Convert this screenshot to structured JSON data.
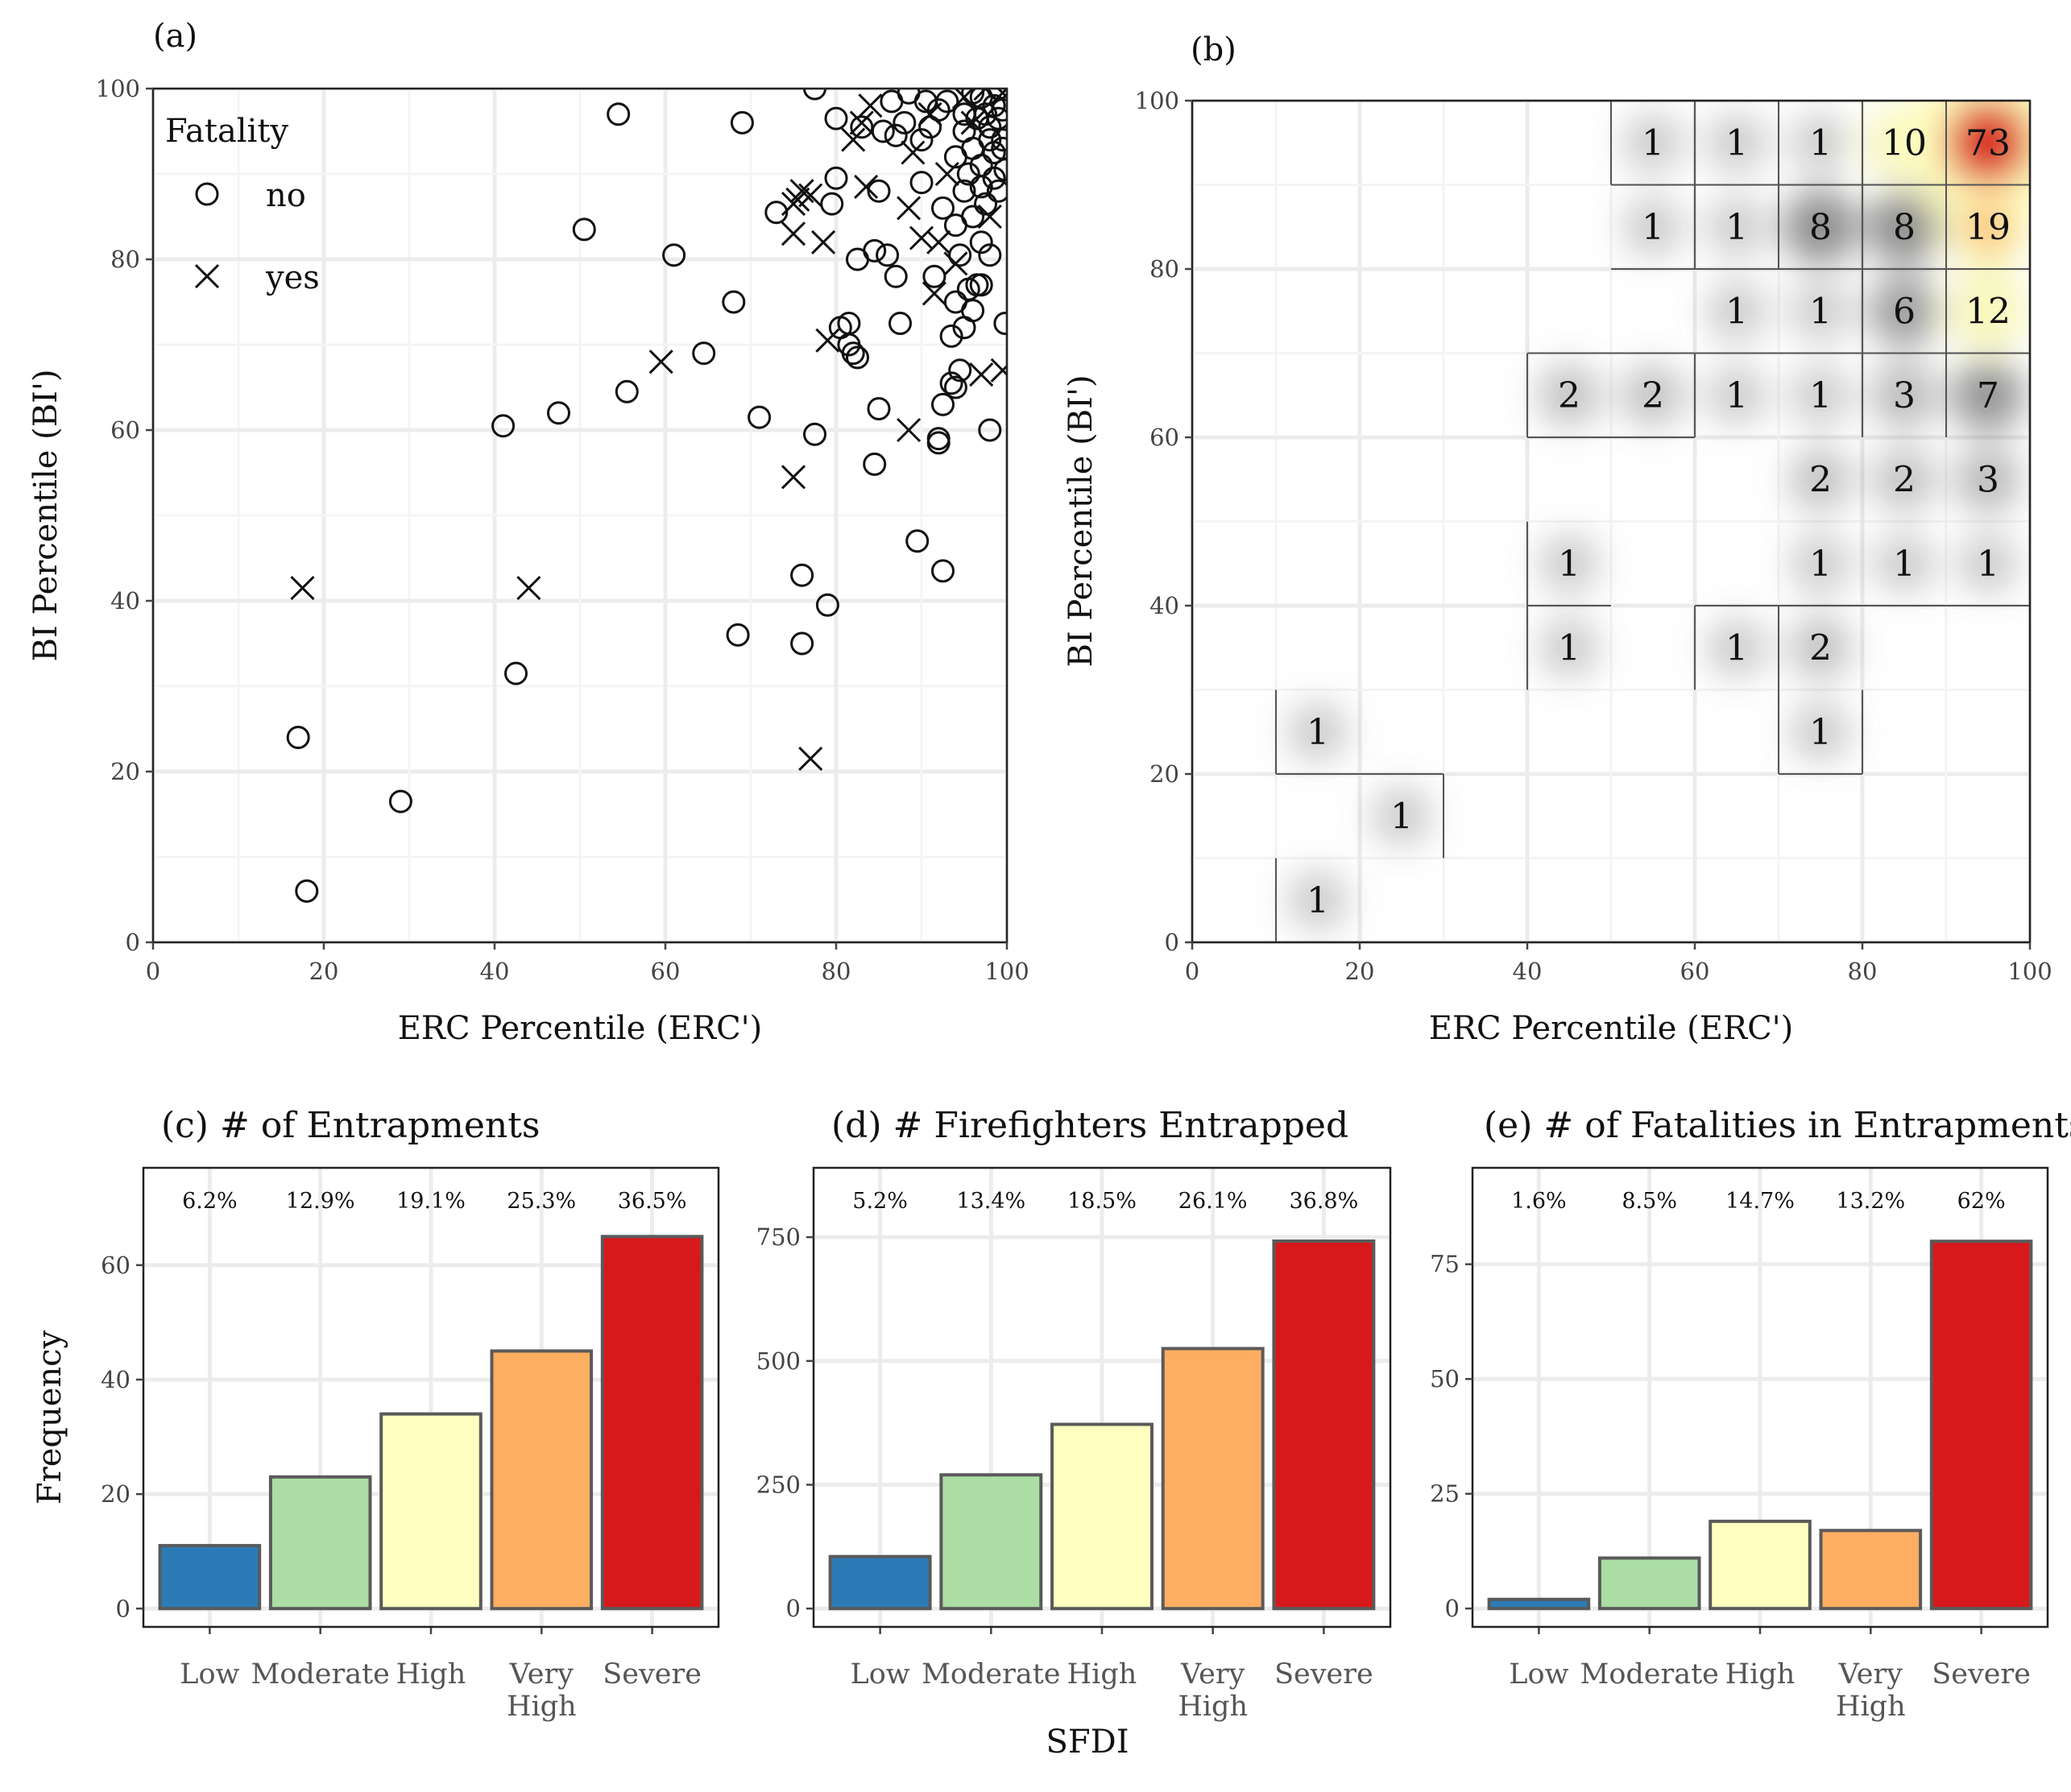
{
  "colors": {
    "low": "#2c7bb6",
    "moderate": "#abdda4",
    "high": "#ffffbf",
    "very_high": "#fdae61",
    "severe": "#d7191c",
    "bar_edge": "#5a5a5a"
  },
  "shared": {
    "sfdi_label": "SFDI",
    "frequency_label": "Frequency"
  },
  "chart_data": [
    {
      "panel": "(a)",
      "type": "scatter",
      "title": "",
      "xlabel": "ERC Percentile (ERC')",
      "ylabel": "BI Percentile (BI')",
      "xlim": [
        0,
        100
      ],
      "ylim": [
        0,
        100
      ],
      "xticks": [
        "0",
        "20",
        "40",
        "60",
        "80",
        "100"
      ],
      "yticks": [
        "0",
        "20",
        "40",
        "60",
        "80",
        "100"
      ],
      "legend": {
        "title": "Fatality",
        "entries": [
          "no",
          "yes"
        ],
        "placement": "top-left"
      },
      "series": [
        {
          "name": "no",
          "marker": "circle",
          "points": [
            [
              17,
              24
            ],
            [
              18,
              6
            ],
            [
              29,
              16.5
            ],
            [
              41,
              60.5
            ],
            [
              42.5,
              31.5
            ],
            [
              47.5,
              62
            ],
            [
              50.5,
              83.5
            ],
            [
              54.5,
              97
            ],
            [
              55.5,
              64.5
            ],
            [
              61,
              80.5
            ],
            [
              64.5,
              69
            ],
            [
              68,
              75
            ],
            [
              68.5,
              36
            ],
            [
              69,
              96
            ],
            [
              71,
              61.5
            ],
            [
              73,
              85.5
            ],
            [
              76,
              43
            ],
            [
              76,
              35
            ],
            [
              77.5,
              59.5
            ],
            [
              77.5,
              100
            ],
            [
              79,
              39.5
            ],
            [
              79.5,
              86.5
            ],
            [
              80,
              96.5
            ],
            [
              80,
              89.5
            ],
            [
              80.5,
              72
            ],
            [
              81.5,
              70
            ],
            [
              81.5,
              72.5
            ],
            [
              82,
              69
            ],
            [
              82.5,
              68.5
            ],
            [
              82.5,
              80
            ],
            [
              83,
              95.5
            ],
            [
              84.5,
              56
            ],
            [
              84.5,
              81
            ],
            [
              85,
              88
            ],
            [
              85,
              62.5
            ],
            [
              85.5,
              95
            ],
            [
              86,
              80.5
            ],
            [
              86.5,
              98.5
            ],
            [
              87,
              94.5
            ],
            [
              87,
              78
            ],
            [
              87.5,
              72.5
            ],
            [
              88,
              96
            ],
            [
              88.5,
              99.5
            ],
            [
              89.5,
              47
            ],
            [
              90,
              89
            ],
            [
              90,
              94
            ],
            [
              90.5,
              98.5
            ],
            [
              91,
              95.5
            ],
            [
              91.5,
              78
            ],
            [
              92,
              59
            ],
            [
              92,
              58.5
            ],
            [
              92,
              97.5
            ],
            [
              92.5,
              43.5
            ],
            [
              92.5,
              63
            ],
            [
              92.5,
              86
            ],
            [
              93,
              98.5
            ],
            [
              93.5,
              71
            ],
            [
              93.5,
              65.5
            ],
            [
              94,
              75
            ],
            [
              94,
              65
            ],
            [
              94,
              84
            ],
            [
              94,
              92
            ],
            [
              94.5,
              67
            ],
            [
              94.5,
              80.5
            ],
            [
              95,
              72
            ],
            [
              95,
              97
            ],
            [
              95,
              88
            ],
            [
              95,
              95
            ],
            [
              95.5,
              76.5
            ],
            [
              95.5,
              90
            ],
            [
              96,
              99.5
            ],
            [
              96,
              74
            ],
            [
              96,
              85
            ],
            [
              96,
              93
            ],
            [
              96.5,
              77
            ],
            [
              96.5,
              96.5
            ],
            [
              97,
              82
            ],
            [
              97,
              88.5
            ],
            [
              97,
              91
            ],
            [
              97,
              77
            ],
            [
              97,
              99
            ],
            [
              97.5,
              97
            ],
            [
              97.5,
              86.5
            ],
            [
              98,
              95.5
            ],
            [
              98,
              60
            ],
            [
              98,
              80.5
            ],
            [
              98,
              94
            ],
            [
              98.5,
              98
            ],
            [
              98.5,
              89.5
            ],
            [
              98.5,
              92.5
            ],
            [
              99,
              96.5
            ],
            [
              99,
              88
            ],
            [
              99,
              100
            ],
            [
              99.5,
              97.5
            ],
            [
              99.5,
              94
            ],
            [
              99.5,
              93
            ],
            [
              99.8,
              72.5
            ],
            [
              99.8,
              90.5
            ]
          ]
        },
        {
          "name": "yes",
          "marker": "x",
          "points": [
            [
              17.5,
              41.5
            ],
            [
              44,
              41.5
            ],
            [
              59.5,
              68
            ],
            [
              75,
              54.5
            ],
            [
              75,
              83
            ],
            [
              75,
              86.5
            ],
            [
              75.5,
              87
            ],
            [
              76,
              88
            ],
            [
              77,
              87.5
            ],
            [
              77,
              21.5
            ],
            [
              78.5,
              82
            ],
            [
              79,
              70.5
            ],
            [
              82,
              94
            ],
            [
              83,
              96
            ],
            [
              83.5,
              88.5
            ],
            [
              84,
              98
            ],
            [
              88.5,
              60
            ],
            [
              88.5,
              86
            ],
            [
              89,
              92.5
            ],
            [
              90,
              82.5
            ],
            [
              91,
              97
            ],
            [
              91.5,
              76
            ],
            [
              92,
              82
            ],
            [
              93,
              90
            ],
            [
              94,
              79.5
            ],
            [
              95,
              99
            ],
            [
              96,
              96
            ],
            [
              97,
              66.5
            ],
            [
              97.5,
              100
            ],
            [
              98,
              85
            ],
            [
              99.5,
              67
            ],
            [
              99.5,
              99.5
            ]
          ]
        }
      ]
    },
    {
      "panel": "(b)",
      "type": "heatmap",
      "title": "",
      "xlabel": "ERC Percentile (ERC')",
      "ylabel": "BI Percentile (BI')",
      "xlim": [
        0,
        100
      ],
      "ylim": [
        0,
        100
      ],
      "xticks": [
        "0",
        "20",
        "40",
        "60",
        "80",
        "100"
      ],
      "yticks": [
        "0",
        "20",
        "40",
        "60",
        "80",
        "100"
      ],
      "bin_width": 10,
      "color_scale": "grey to yellow to red by count",
      "cells": [
        {
          "x": 50,
          "y": 90,
          "count": "1"
        },
        {
          "x": 60,
          "y": 90,
          "count": "1"
        },
        {
          "x": 70,
          "y": 90,
          "count": "1"
        },
        {
          "x": 80,
          "y": 90,
          "count": "10"
        },
        {
          "x": 90,
          "y": 90,
          "count": "73"
        },
        {
          "x": 50,
          "y": 80,
          "count": "1"
        },
        {
          "x": 60,
          "y": 80,
          "count": "1"
        },
        {
          "x": 70,
          "y": 80,
          "count": "8"
        },
        {
          "x": 80,
          "y": 80,
          "count": "8"
        },
        {
          "x": 90,
          "y": 80,
          "count": "19"
        },
        {
          "x": 60,
          "y": 70,
          "count": "1"
        },
        {
          "x": 70,
          "y": 70,
          "count": "1"
        },
        {
          "x": 80,
          "y": 70,
          "count": "6"
        },
        {
          "x": 90,
          "y": 70,
          "count": "12"
        },
        {
          "x": 40,
          "y": 60,
          "count": "2"
        },
        {
          "x": 50,
          "y": 60,
          "count": "2"
        },
        {
          "x": 60,
          "y": 60,
          "count": "1"
        },
        {
          "x": 70,
          "y": 60,
          "count": "1"
        },
        {
          "x": 80,
          "y": 60,
          "count": "3"
        },
        {
          "x": 90,
          "y": 60,
          "count": "7"
        },
        {
          "x": 70,
          "y": 50,
          "count": "2"
        },
        {
          "x": 80,
          "y": 50,
          "count": "2"
        },
        {
          "x": 90,
          "y": 50,
          "count": "3"
        },
        {
          "x": 40,
          "y": 40,
          "count": "1"
        },
        {
          "x": 70,
          "y": 40,
          "count": "1"
        },
        {
          "x": 80,
          "y": 40,
          "count": "1"
        },
        {
          "x": 90,
          "y": 40,
          "count": "1"
        },
        {
          "x": 40,
          "y": 30,
          "count": "1"
        },
        {
          "x": 60,
          "y": 30,
          "count": "1"
        },
        {
          "x": 70,
          "y": 30,
          "count": "2"
        },
        {
          "x": 10,
          "y": 20,
          "count": "1"
        },
        {
          "x": 70,
          "y": 20,
          "count": "1"
        },
        {
          "x": 20,
          "y": 10,
          "count": "1"
        },
        {
          "x": 10,
          "y": 0,
          "count": "1"
        }
      ],
      "boundaries": [
        [
          [
            50,
            90
          ],
          [
            100,
            90
          ]
        ],
        [
          [
            50,
            80
          ],
          [
            100,
            80
          ]
        ],
        [
          [
            40,
            70
          ],
          [
            100,
            70
          ]
        ],
        [
          [
            40,
            60
          ],
          [
            60,
            60
          ]
        ],
        [
          [
            40,
            40
          ],
          [
            50,
            40
          ]
        ],
        [
          [
            60,
            40
          ],
          [
            100,
            40
          ]
        ],
        [
          [
            70,
            20
          ],
          [
            80,
            20
          ]
        ],
        [
          [
            10,
            20
          ],
          [
            30,
            20
          ]
        ],
        [
          [
            50,
            90
          ],
          [
            50,
            100
          ]
        ],
        [
          [
            60,
            80
          ],
          [
            60,
            100
          ]
        ],
        [
          [
            70,
            80
          ],
          [
            70,
            100
          ]
        ],
        [
          [
            80,
            60
          ],
          [
            80,
            100
          ]
        ],
        [
          [
            90,
            60
          ],
          [
            90,
            100
          ]
        ],
        [
          [
            40,
            60
          ],
          [
            40,
            70
          ]
        ],
        [
          [
            60,
            60
          ],
          [
            60,
            70
          ]
        ],
        [
          [
            40,
            40
          ],
          [
            40,
            50
          ]
        ],
        [
          [
            40,
            30
          ],
          [
            40,
            40
          ]
        ],
        [
          [
            60,
            30
          ],
          [
            60,
            40
          ]
        ],
        [
          [
            70,
            20
          ],
          [
            70,
            40
          ]
        ],
        [
          [
            80,
            20
          ],
          [
            80,
            30
          ]
        ],
        [
          [
            10,
            20
          ],
          [
            10,
            30
          ]
        ],
        [
          [
            30,
            10
          ],
          [
            30,
            20
          ]
        ],
        [
          [
            10,
            0
          ],
          [
            10,
            10
          ]
        ]
      ]
    },
    {
      "panel": "(c)",
      "type": "bar",
      "title": "(c) # of Entrapments",
      "xlabel": "SFDI",
      "ylabel": "Frequency",
      "categories": [
        "Low",
        "Moderate",
        "High",
        "Very High",
        "Severe"
      ],
      "values": [
        11,
        23,
        34,
        45,
        65
      ],
      "percent_labels": [
        "6.2%",
        "12.9%",
        "19.1%",
        "25.3%",
        "36.5%"
      ],
      "ylim": [
        -3.2,
        77
      ],
      "yticks": [
        "0",
        "20",
        "40",
        "60"
      ]
    },
    {
      "panel": "(d)",
      "type": "bar",
      "title": "(d) # Firefighters Entrapped",
      "xlabel": "SFDI",
      "ylabel": "",
      "categories": [
        "Low",
        "Moderate",
        "High",
        "Very High",
        "Severe"
      ],
      "values": [
        105,
        270,
        372,
        525,
        742
      ],
      "percent_labels": [
        "5.2%",
        "13.4%",
        "18.5%",
        "26.1%",
        "36.8%"
      ],
      "ylim": [
        -37,
        890
      ],
      "yticks": [
        "0",
        "250",
        "500",
        "750"
      ]
    },
    {
      "panel": "(e)",
      "type": "bar",
      "title": "(e) # of Fatalities in Entrapments",
      "xlabel": "SFDI",
      "ylabel": "",
      "categories": [
        "Low",
        "Moderate",
        "High",
        "Very High",
        "Severe"
      ],
      "values": [
        2,
        11,
        19,
        17,
        80
      ],
      "percent_labels": [
        "1.6%",
        "8.5%",
        "14.7%",
        "13.2%",
        "62%"
      ],
      "ylim": [
        -4,
        96
      ],
      "yticks": [
        "0",
        "25",
        "50",
        "75"
      ]
    }
  ]
}
